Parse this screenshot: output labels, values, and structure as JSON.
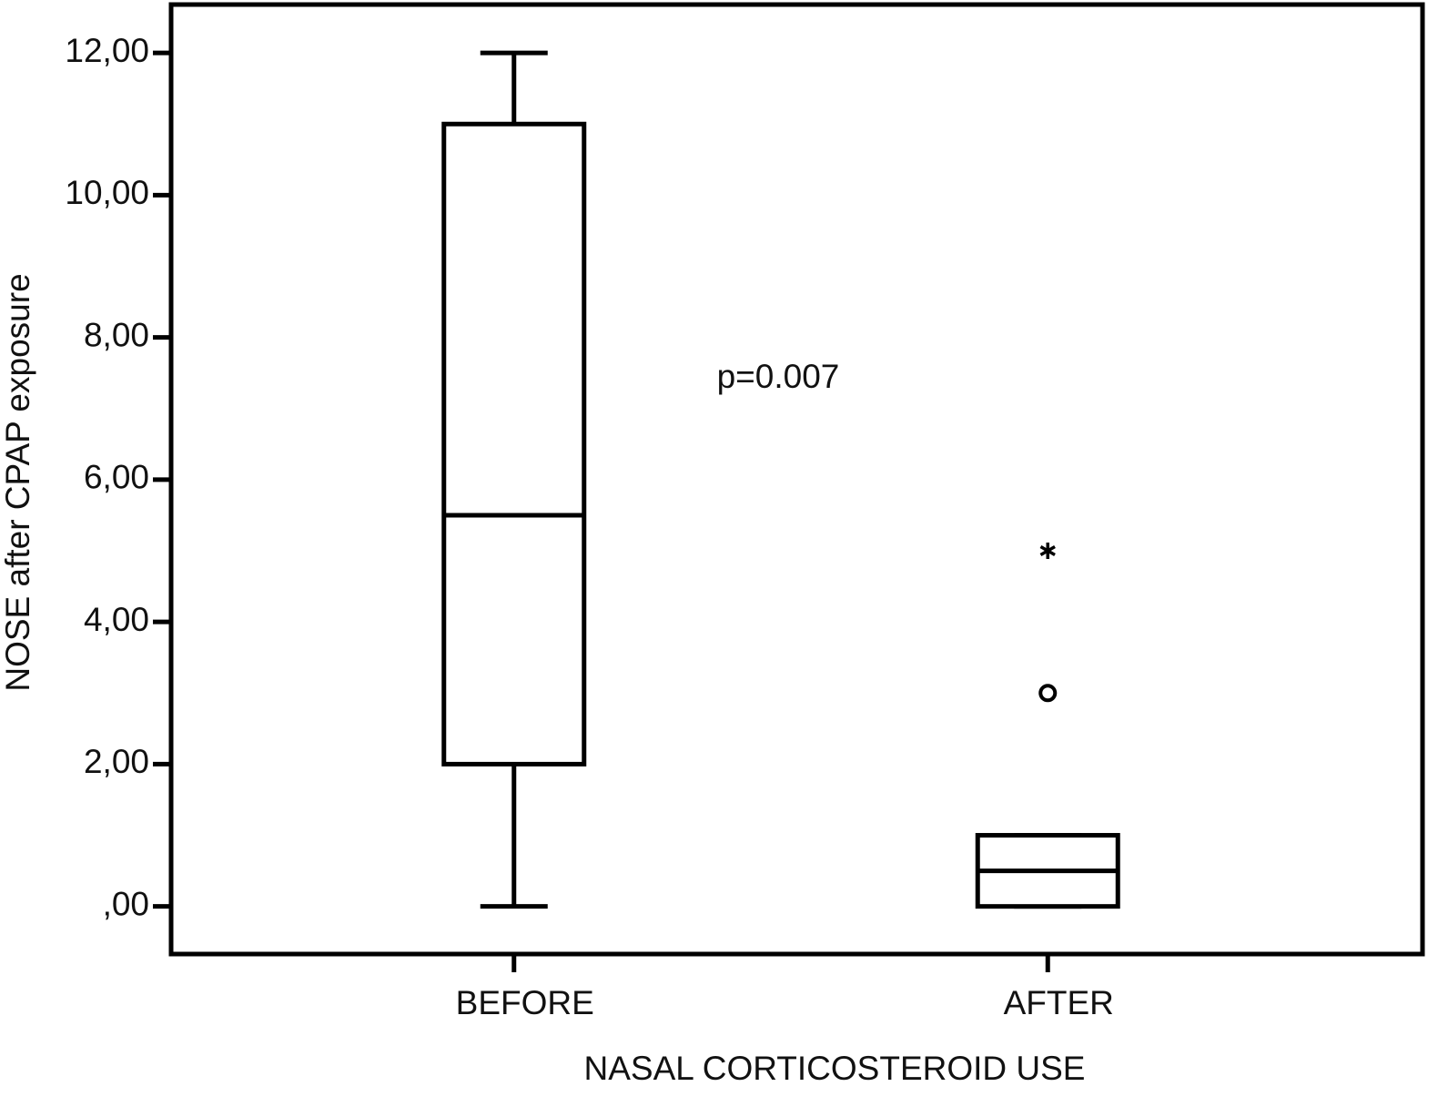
{
  "chart_data": {
    "type": "box",
    "annotation": "p=0.007",
    "x_label": "NASAL CORTICOSTEROID USE",
    "y_label": "NOSE after CPAP exposure",
    "categories": [
      "BEFORE",
      "AFTER"
    ],
    "boxes": [
      {
        "min": 0,
        "q1": 2,
        "median": 5.5,
        "q3": 11,
        "max": 12
      },
      {
        "min": 0,
        "q1": 0,
        "median": 0.5,
        "q3": 1,
        "max": 1,
        "outliers": [
          3
        ],
        "extremes": [
          5
        ]
      }
    ],
    "color": "#000000",
    "ylim": [
      -0.67,
      12.68
    ],
    "yticks": [
      {
        "value": 0,
        "label": ",00"
      },
      {
        "value": 2,
        "label": "2,00"
      },
      {
        "value": 4,
        "label": "4,00"
      },
      {
        "value": 6,
        "label": "6,00"
      },
      {
        "value": 8,
        "label": "8,00"
      },
      {
        "value": 10,
        "label": "10,00"
      },
      {
        "value": 12,
        "label": "12,00"
      }
    ]
  }
}
